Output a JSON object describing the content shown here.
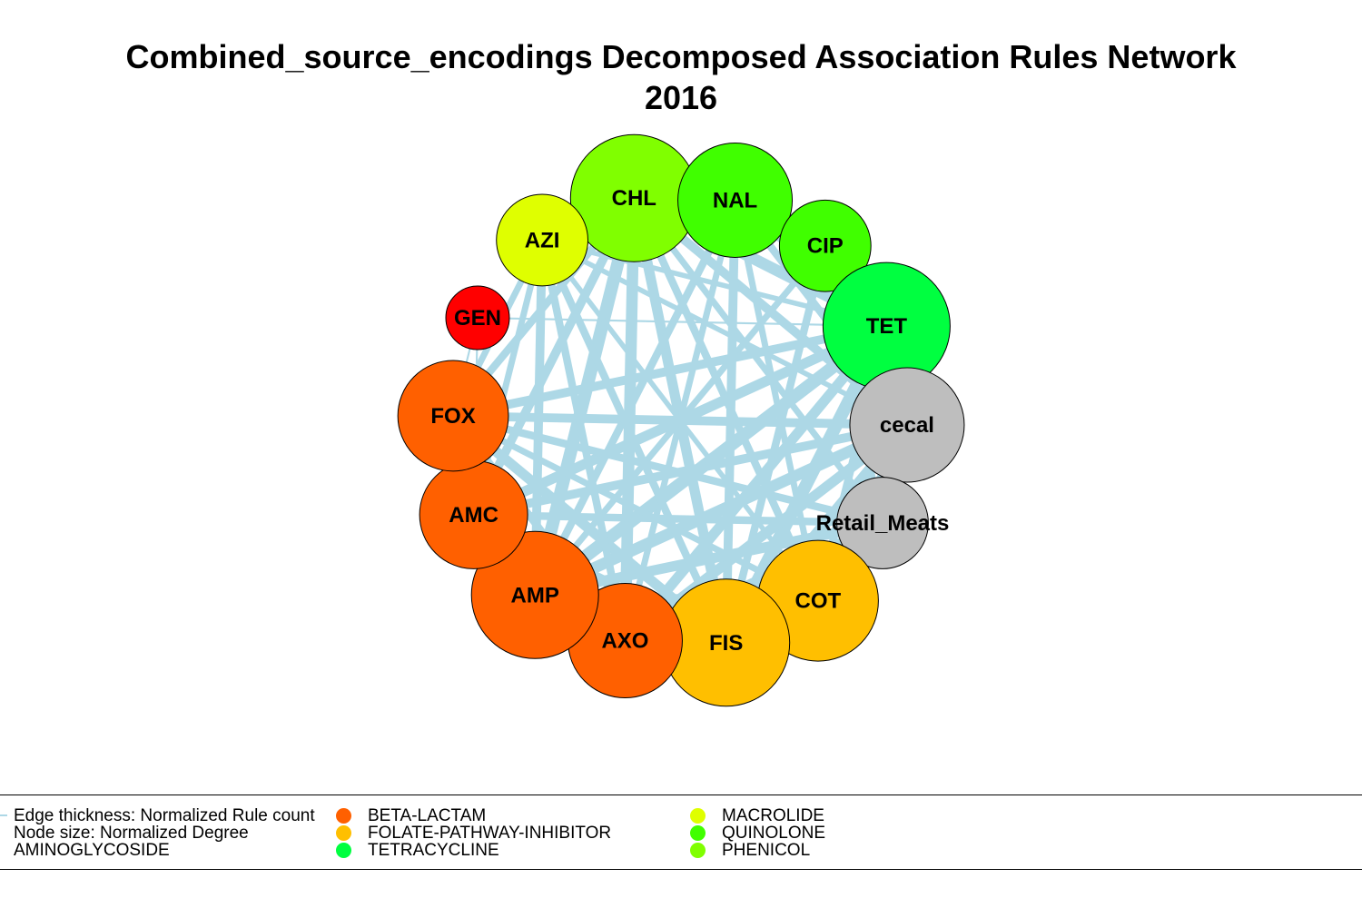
{
  "title": {
    "line1": "Combined_source_encodings Decomposed Association Rules Network",
    "line2": "2016"
  },
  "edge_color": "#add8e6",
  "nodes": [
    {
      "label": "CHL",
      "group": "PHENICOL",
      "color": "#80ff00",
      "size": 1.0
    },
    {
      "label": "NAL",
      "group": "QUINOLONE",
      "color": "#40ff00",
      "size": 0.9
    },
    {
      "label": "CIP",
      "group": "QUINOLONE",
      "color": "#40ff00",
      "size": 0.72
    },
    {
      "label": "TET",
      "group": "TETRACYCLINE",
      "color": "#00ff40",
      "size": 1.0
    },
    {
      "label": "cecal",
      "group": "",
      "color": "#bebebe",
      "size": 0.9
    },
    {
      "label": "Retail_Meats",
      "group": "",
      "color": "#bebebe",
      "size": 0.72
    },
    {
      "label": "COT",
      "group": "FOLATE-PATHWAY-INHIBITOR",
      "color": "#ffbf00",
      "size": 0.95
    },
    {
      "label": "FIS",
      "group": "FOLATE-PATHWAY-INHIBITOR",
      "color": "#ffbf00",
      "size": 1.0
    },
    {
      "label": "AXO",
      "group": "BETA-LACTAM",
      "color": "#ff6000",
      "size": 0.9
    },
    {
      "label": "AMP",
      "group": "BETA-LACTAM",
      "color": "#ff6000",
      "size": 1.0
    },
    {
      "label": "AMC",
      "group": "BETA-LACTAM",
      "color": "#ff6000",
      "size": 0.85
    },
    {
      "label": "FOX",
      "group": "BETA-LACTAM",
      "color": "#ff6000",
      "size": 0.87
    },
    {
      "label": "GEN",
      "group": "AMINOGLYCOSIDE",
      "color": "#ff0000",
      "size": 0.5
    },
    {
      "label": "AZI",
      "group": "MACROLIDE",
      "color": "#dfff00",
      "size": 0.72
    }
  ],
  "edges": [
    [
      "CHL",
      "AMP",
      1.0
    ],
    [
      "CHL",
      "AXO",
      0.9
    ],
    [
      "CHL",
      "FIS",
      0.8
    ],
    [
      "CHL",
      "COT",
      0.6
    ],
    [
      "CHL",
      "TET",
      0.9
    ],
    [
      "CHL",
      "AMC",
      0.7
    ],
    [
      "CHL",
      "FOX",
      0.6
    ],
    [
      "CHL",
      "cecal",
      0.7
    ],
    [
      "CHL",
      "Retail_Meats",
      0.5
    ],
    [
      "CHL",
      "NAL",
      0.4
    ],
    [
      "NAL",
      "AMP",
      0.6
    ],
    [
      "NAL",
      "FIS",
      0.7
    ],
    [
      "NAL",
      "TET",
      0.7
    ],
    [
      "NAL",
      "AXO",
      0.5
    ],
    [
      "NAL",
      "cecal",
      0.6
    ],
    [
      "NAL",
      "COT",
      0.5
    ],
    [
      "CIP",
      "TET",
      0.6
    ],
    [
      "CIP",
      "FIS",
      0.6
    ],
    [
      "CIP",
      "AMP",
      0.5
    ],
    [
      "CIP",
      "cecal",
      0.5
    ],
    [
      "CIP",
      "Retail_Meats",
      0.4
    ],
    [
      "TET",
      "AMP",
      1.0
    ],
    [
      "TET",
      "FIS",
      1.0
    ],
    [
      "TET",
      "AXO",
      0.8
    ],
    [
      "TET",
      "AMC",
      0.8
    ],
    [
      "TET",
      "FOX",
      0.7
    ],
    [
      "TET",
      "COT",
      0.6
    ],
    [
      "TET",
      "AZI",
      0.4
    ],
    [
      "TET",
      "GEN",
      0.15
    ],
    [
      "cecal",
      "AMP",
      0.9
    ],
    [
      "cecal",
      "FIS",
      0.9
    ],
    [
      "cecal",
      "AXO",
      0.8
    ],
    [
      "cecal",
      "FOX",
      0.7
    ],
    [
      "cecal",
      "AMC",
      0.7
    ],
    [
      "cecal",
      "COT",
      0.6
    ],
    [
      "cecal",
      "AZI",
      0.4
    ],
    [
      "Retail_Meats",
      "AMP",
      0.8
    ],
    [
      "Retail_Meats",
      "FIS",
      0.7
    ],
    [
      "Retail_Meats",
      "AXO",
      0.7
    ],
    [
      "Retail_Meats",
      "FOX",
      0.6
    ],
    [
      "Retail_Meats",
      "AMC",
      0.6
    ],
    [
      "COT",
      "AMP",
      0.6
    ],
    [
      "COT",
      "FOX",
      0.5
    ],
    [
      "COT",
      "AXO",
      0.5
    ],
    [
      "COT",
      "AZI",
      0.4
    ],
    [
      "FIS",
      "AMP",
      1.0
    ],
    [
      "FIS",
      "FOX",
      0.8
    ],
    [
      "FIS",
      "AMC",
      0.8
    ],
    [
      "FIS",
      "AZI",
      0.6
    ],
    [
      "AXO",
      "FOX",
      0.6
    ],
    [
      "AXO",
      "AZI",
      0.6
    ],
    [
      "AMP",
      "AZI",
      0.7
    ],
    [
      "AMP",
      "FOX",
      0.6
    ],
    [
      "AMC",
      "AZI",
      0.5
    ],
    [
      "FOX",
      "AZI",
      0.5
    ],
    [
      "FOX",
      "GEN",
      0.15
    ],
    [
      "AMC",
      "GEN",
      0.15
    ]
  ],
  "legend": {
    "col1": [
      "Edge thickness: Normalized Rule count",
      "Node size: Normalized Degree",
      "AMINOGLYCOSIDE"
    ],
    "col2": [
      {
        "label": "BETA-LACTAM",
        "color": "#ff6000"
      },
      {
        "label": "FOLATE-PATHWAY-INHIBITOR",
        "color": "#ffbf00"
      },
      {
        "label": "TETRACYCLINE",
        "color": "#00ff40"
      }
    ],
    "col3": [
      {
        "label": "MACROLIDE",
        "color": "#dfff00"
      },
      {
        "label": "QUINOLONE",
        "color": "#40ff00"
      },
      {
        "label": "PHENICOL",
        "color": "#80ff00"
      }
    ]
  }
}
